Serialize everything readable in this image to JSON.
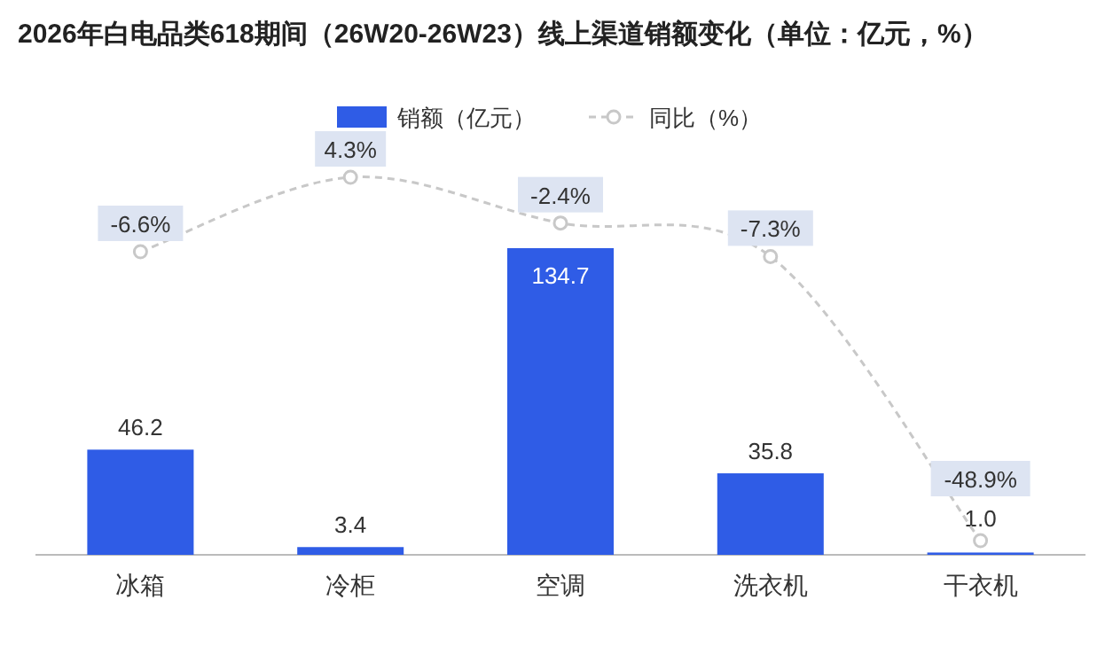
{
  "chart_data": {
    "type": "bar",
    "title": "2026年白电品类618期间（26W20-26W23）线上渠道销额变化（单位：亿元，%）",
    "categories": [
      "冰箱",
      "冷柜",
      "空调",
      "洗衣机",
      "干衣机"
    ],
    "series": [
      {
        "name": "销额（亿元）",
        "color": "#2f5ce6",
        "values": [
          46.2,
          3.4,
          134.7,
          35.8,
          1.0
        ],
        "value_labels": [
          "46.2",
          "3.4",
          "134.7",
          "35.8",
          "1.0"
        ]
      },
      {
        "name": "同比（%）",
        "type": "line",
        "axis": "y2",
        "color": "#c8c8c8",
        "line_style": "dashed",
        "marker": "circle",
        "values": [
          -6.6,
          4.3,
          -2.4,
          -7.3,
          -48.9
        ],
        "value_labels": [
          "-6.6%",
          "4.3%",
          "-2.4%",
          "-7.3%",
          "-48.9%"
        ]
      }
    ],
    "legend": "top",
    "grid": false,
    "tick_labels": "x"
  }
}
